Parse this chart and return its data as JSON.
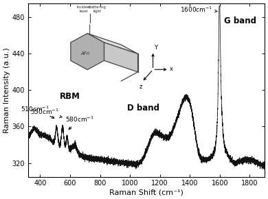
{
  "xlabel": "Raman Shift (cm⁻¹)",
  "ylabel": "Raman Intensity (a.u.)",
  "xlim": [
    320,
    1900
  ],
  "ylim": [
    305,
    495
  ],
  "xticks": [
    400,
    600,
    800,
    1000,
    1200,
    1400,
    1600,
    1800
  ],
  "yticks": [
    320,
    360,
    400,
    440,
    480
  ],
  "background_color": "#ffffff",
  "line_color": "#111111"
}
